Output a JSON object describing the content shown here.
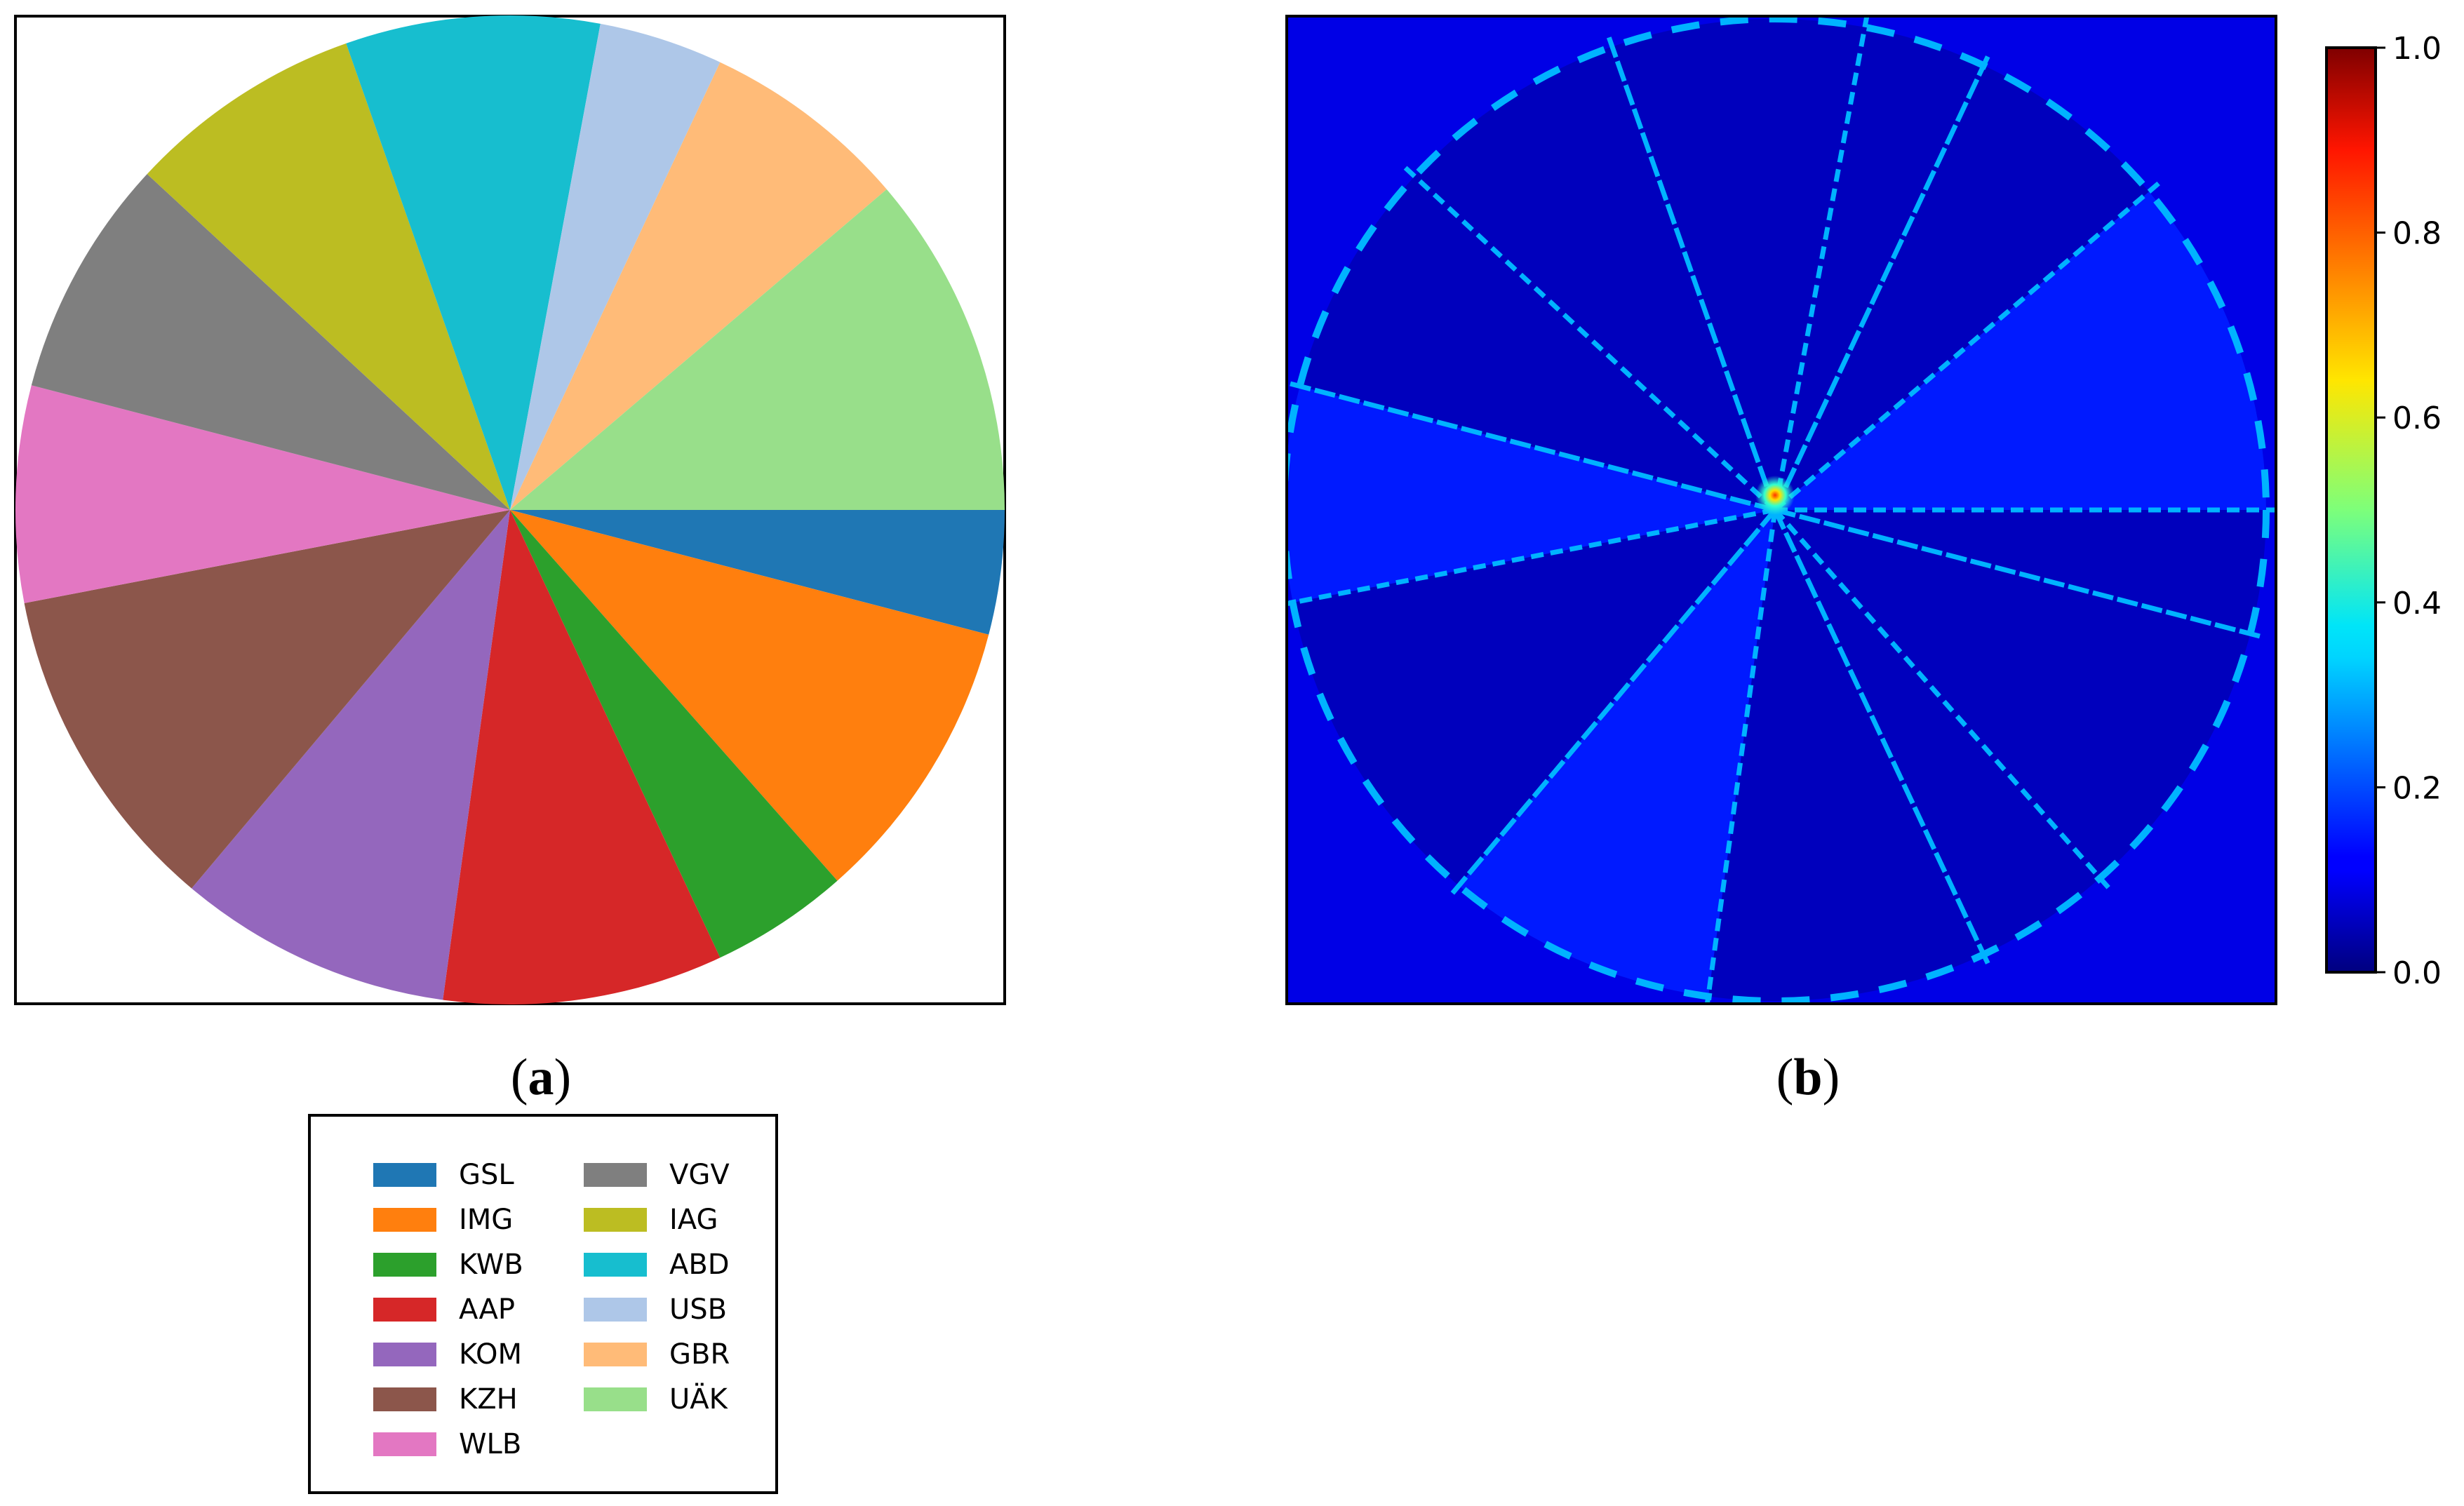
{
  "chart_data": [
    {
      "type": "pie",
      "panel_label": "a",
      "slices": [
        {
          "label": "GSL",
          "value": 4.3,
          "color": "#1f77b4"
        },
        {
          "label": "IMG",
          "value": 10.0,
          "color": "#ff7f0e"
        },
        {
          "label": "KWB",
          "value": 4.8,
          "color": "#2ca02c"
        },
        {
          "label": "AAP",
          "value": 9.7,
          "color": "#d62728"
        },
        {
          "label": "KOM",
          "value": 9.5,
          "color": "#9467bd"
        },
        {
          "label": "KZH",
          "value": 11.5,
          "color": "#8c564b"
        },
        {
          "label": "WLB",
          "value": 7.5,
          "color": "#e377c2"
        },
        {
          "label": "VGV",
          "value": 8.3,
          "color": "#7f7f7f"
        },
        {
          "label": "IAG",
          "value": 8.2,
          "color": "#bcbd22"
        },
        {
          "label": "ABD",
          "value": 8.8,
          "color": "#17becf"
        },
        {
          "label": "USB",
          "value": 4.3,
          "color": "#aec7e8"
        },
        {
          "label": "GBR",
          "value": 7.2,
          "color": "#ffbb78"
        },
        {
          "label": "UÄK",
          "value": 11.9,
          "color": "#98df8a"
        }
      ],
      "start_angle_deg": 0,
      "direction": "clockwise",
      "legend_placement": "below panel a, two columns",
      "legend": {
        "entries": [
          {
            "label": "GSL",
            "color": "#1f77b4"
          },
          {
            "label": "IMG",
            "color": "#ff7f0e"
          },
          {
            "label": "KWB",
            "color": "#2ca02c"
          },
          {
            "label": "AAP",
            "color": "#d62728"
          },
          {
            "label": "KOM",
            "color": "#9467bd"
          },
          {
            "label": "KZH",
            "color": "#8c564b"
          },
          {
            "label": "WLB",
            "color": "#e377c2"
          },
          {
            "label": "VGV",
            "color": "#7f7f7f"
          },
          {
            "label": "IAG",
            "color": "#bcbd22"
          },
          {
            "label": "ABD",
            "color": "#17becf"
          },
          {
            "label": "USB",
            "color": "#aec7e8"
          },
          {
            "label": "GBR",
            "color": "#ffbb78"
          },
          {
            "label": "UÄK",
            "color": "#98df8a"
          }
        ]
      }
    },
    {
      "type": "heatmap",
      "panel_label": "b",
      "colormap": "jet",
      "background_value": 0.1,
      "inner_disc_value": 0.06,
      "bright_slice_value": 0.15,
      "edge_value": 0.3,
      "peak_value": 0.65,
      "colorbar": {
        "range": [
          0.0,
          1.0
        ],
        "ticks": [
          "0.0",
          "0.2",
          "0.4",
          "0.6",
          "0.8",
          "1.0"
        ]
      }
    }
  ]
}
